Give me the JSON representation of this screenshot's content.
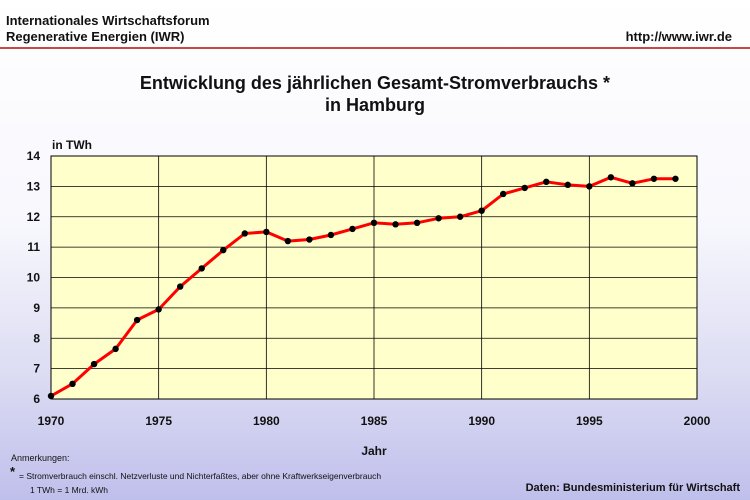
{
  "header": {
    "org_line1": "Internationales Wirtschaftsforum",
    "org_line2": "Regenerative Energien (IWR)",
    "url": "http://www.iwr.de"
  },
  "chart_data": {
    "type": "line",
    "title_line1": "Entwicklung des jährlichen Gesamt-Stromverbrauchs *",
    "title_line2": "in Hamburg",
    "xlabel": "Jahr",
    "ylabel": "in TWh",
    "xlim": [
      1970,
      2000
    ],
    "ylim": [
      6,
      14
    ],
    "xticks": [
      "1970",
      "1975",
      "1980",
      "1985",
      "1990",
      "1995",
      "2000"
    ],
    "yticks": [
      "6",
      "7",
      "8",
      "9",
      "10",
      "11",
      "12",
      "13",
      "14"
    ],
    "grid": true,
    "series": [
      {
        "x": [
          1970,
          1971,
          1972,
          1973,
          1974,
          1975,
          1976,
          1977,
          1978,
          1979,
          1980,
          1981,
          1982,
          1983,
          1984,
          1985,
          1986,
          1987,
          1988,
          1989,
          1990,
          1991,
          1992,
          1993,
          1994,
          1995,
          1996,
          1997,
          1998,
          1999
        ],
        "y": [
          6.1,
          6.5,
          7.15,
          7.65,
          8.6,
          8.95,
          9.7,
          10.3,
          10.9,
          11.45,
          11.5,
          11.2,
          11.25,
          11.4,
          11.6,
          11.8,
          11.75,
          11.8,
          11.95,
          12.0,
          12.2,
          12.75,
          12.95,
          13.15,
          13.05,
          13.0,
          13.3,
          13.1,
          13.25,
          13.25
        ]
      }
    ],
    "colors": {
      "plot_bg": "#ffffcc",
      "line": "#ff0000",
      "marker": "#000000",
      "grid": "#000000"
    }
  },
  "notes": {
    "title": "Anmerkungen:",
    "star": "*",
    "text": "= Stromverbrauch einschl. Netzverluste und Nichterfaßtes, aber ohne Kraftwerkseigenverbrauch",
    "unit": "1 TWh = 1 Mrd. kWh"
  },
  "source": "Daten: Bundesministerium für Wirtschaft"
}
